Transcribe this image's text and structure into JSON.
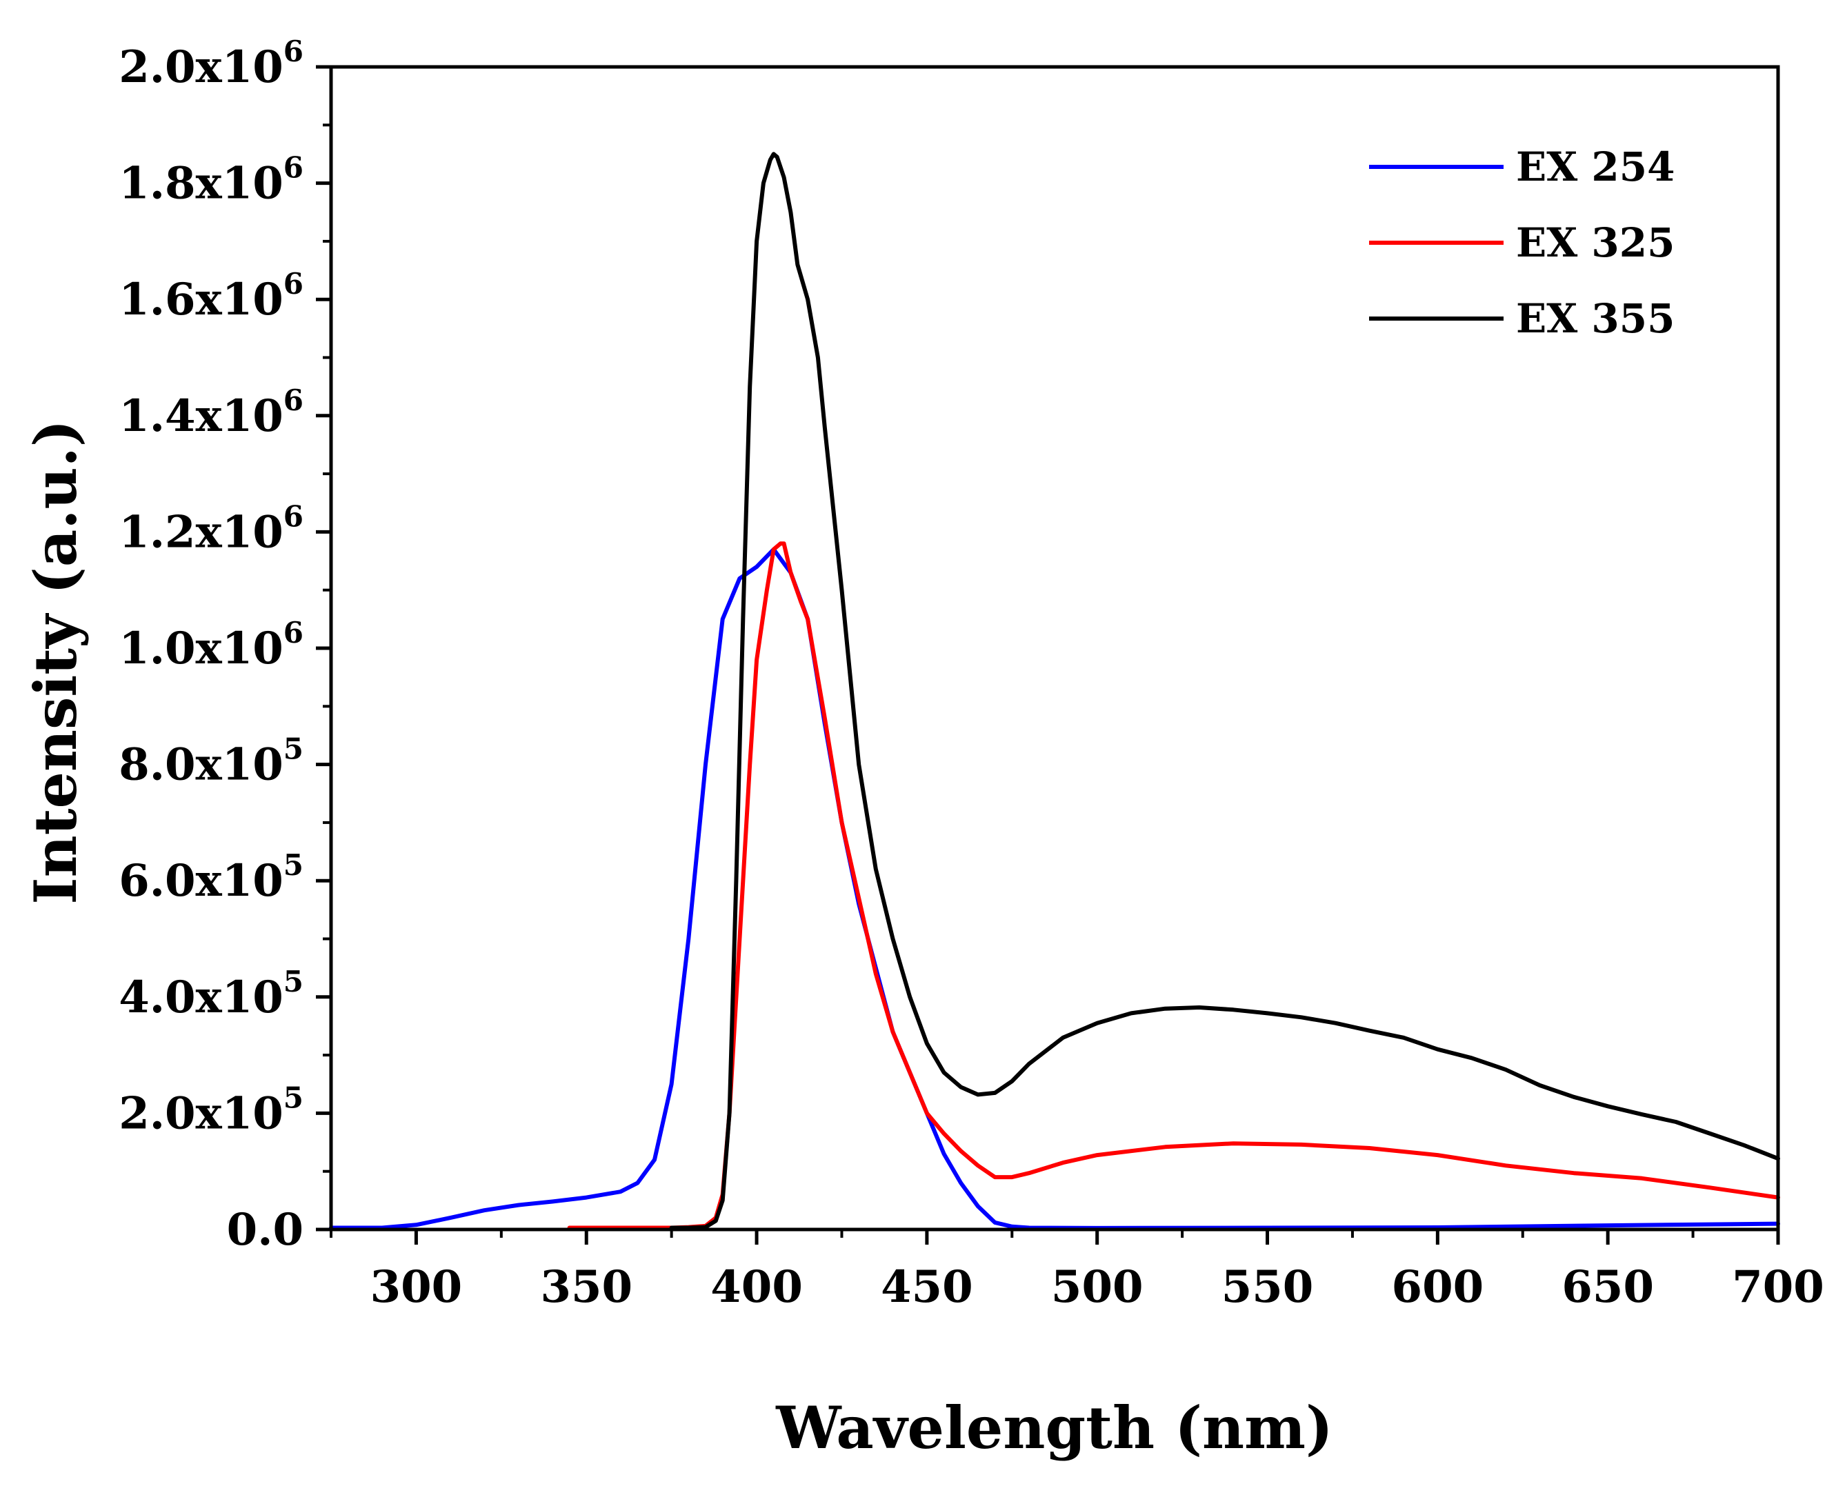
{
  "chart_data": {
    "type": "line",
    "title": "",
    "xlabel": "Wavelength (nm)",
    "ylabel": "Intensity (a.u.)",
    "xlim": [
      275,
      700
    ],
    "ylim": [
      0,
      2000000
    ],
    "x_ticks": [
      300,
      350,
      400,
      450,
      500,
      550,
      600,
      650,
      700
    ],
    "x_tick_labels": [
      "300",
      "350",
      "400",
      "450",
      "500",
      "550",
      "600",
      "650",
      "700"
    ],
    "y_ticks": [
      {
        "value": 0,
        "label": "0.0",
        "mantissa": "",
        "exp": ""
      },
      {
        "value": 200000,
        "label": "2.0x10^5",
        "mantissa": "2.0x10",
        "exp": "5"
      },
      {
        "value": 400000,
        "label": "4.0x10^5",
        "mantissa": "4.0x10",
        "exp": "5"
      },
      {
        "value": 600000,
        "label": "6.0x10^5",
        "mantissa": "6.0x10",
        "exp": "5"
      },
      {
        "value": 800000,
        "label": "8.0x10^5",
        "mantissa": "8.0x10",
        "exp": "5"
      },
      {
        "value": 1000000,
        "label": "1.0x10^6",
        "mantissa": "1.0x10",
        "exp": "6"
      },
      {
        "value": 1200000,
        "label": "1.2x10^6",
        "mantissa": "1.2x10",
        "exp": "6"
      },
      {
        "value": 1400000,
        "label": "1.4x10^6",
        "mantissa": "1.4x10",
        "exp": "6"
      },
      {
        "value": 1600000,
        "label": "1.6x10^6",
        "mantissa": "1.6x10",
        "exp": "6"
      },
      {
        "value": 1800000,
        "label": "1.8x10^6",
        "mantissa": "1.8x10",
        "exp": "6"
      },
      {
        "value": 2000000,
        "label": "2.0x10^6",
        "mantissa": "2.0x10",
        "exp": "6"
      }
    ],
    "grid": false,
    "legend_position": "top-right",
    "series": [
      {
        "name": "EX 254",
        "color": "#0000ff",
        "x": [
          275,
          290,
          300,
          310,
          320,
          330,
          340,
          350,
          360,
          365,
          370,
          375,
          380,
          385,
          390,
          395,
          400,
          405,
          410,
          415,
          420,
          425,
          430,
          435,
          440,
          445,
          450,
          455,
          460,
          465,
          470,
          475,
          480,
          500,
          550,
          600,
          650,
          700
        ],
        "y": [
          3000,
          3000,
          8000,
          20000,
          33000,
          42000,
          48000,
          55000,
          65000,
          80000,
          120000,
          250000,
          500000,
          800000,
          1050000,
          1120000,
          1140000,
          1170000,
          1130000,
          1050000,
          870000,
          700000,
          560000,
          450000,
          340000,
          270000,
          200000,
          130000,
          80000,
          40000,
          12000,
          5000,
          3000,
          2500,
          3000,
          3500,
          7000,
          10000
        ]
      },
      {
        "name": "EX 325",
        "color": "#ff0000",
        "x": [
          345,
          350,
          360,
          370,
          375,
          380,
          385,
          388,
          390,
          392,
          395,
          398,
          400,
          403,
          405,
          407,
          408,
          410,
          413,
          415,
          420,
          425,
          430,
          435,
          440,
          445,
          450,
          455,
          460,
          465,
          470,
          475,
          480,
          490,
          500,
          520,
          540,
          560,
          580,
          600,
          620,
          640,
          660,
          680,
          700
        ],
        "y": [
          3000,
          3000,
          3000,
          3000,
          3000,
          4000,
          6000,
          20000,
          60000,
          200000,
          500000,
          800000,
          980000,
          1100000,
          1170000,
          1180000,
          1180000,
          1130000,
          1080000,
          1050000,
          880000,
          700000,
          570000,
          440000,
          340000,
          270000,
          200000,
          165000,
          135000,
          110000,
          90000,
          90000,
          97000,
          115000,
          128000,
          142000,
          148000,
          146000,
          140000,
          128000,
          110000,
          97000,
          88000,
          72000,
          55000
        ]
      },
      {
        "name": "EX 355",
        "color": "#000000",
        "x": [
          375,
          380,
          385,
          388,
          390,
          392,
          394,
          396,
          398,
          400,
          402,
          404,
          405,
          406,
          408,
          410,
          412,
          415,
          418,
          420,
          425,
          430,
          435,
          440,
          445,
          450,
          455,
          460,
          465,
          470,
          475,
          480,
          490,
          500,
          510,
          520,
          530,
          540,
          550,
          560,
          570,
          580,
          590,
          600,
          610,
          620,
          630,
          640,
          650,
          660,
          670,
          680,
          690,
          700
        ],
        "y": [
          3000,
          3000,
          4000,
          15000,
          50000,
          200000,
          600000,
          1050000,
          1450000,
          1700000,
          1800000,
          1840000,
          1850000,
          1845000,
          1810000,
          1750000,
          1660000,
          1600000,
          1500000,
          1380000,
          1100000,
          800000,
          620000,
          500000,
          400000,
          320000,
          270000,
          245000,
          232000,
          235000,
          255000,
          285000,
          330000,
          355000,
          372000,
          380000,
          382000,
          378000,
          372000,
          365000,
          355000,
          342000,
          330000,
          310000,
          295000,
          275000,
          248000,
          228000,
          212000,
          198000,
          185000,
          165000,
          145000,
          122000
        ]
      }
    ]
  }
}
